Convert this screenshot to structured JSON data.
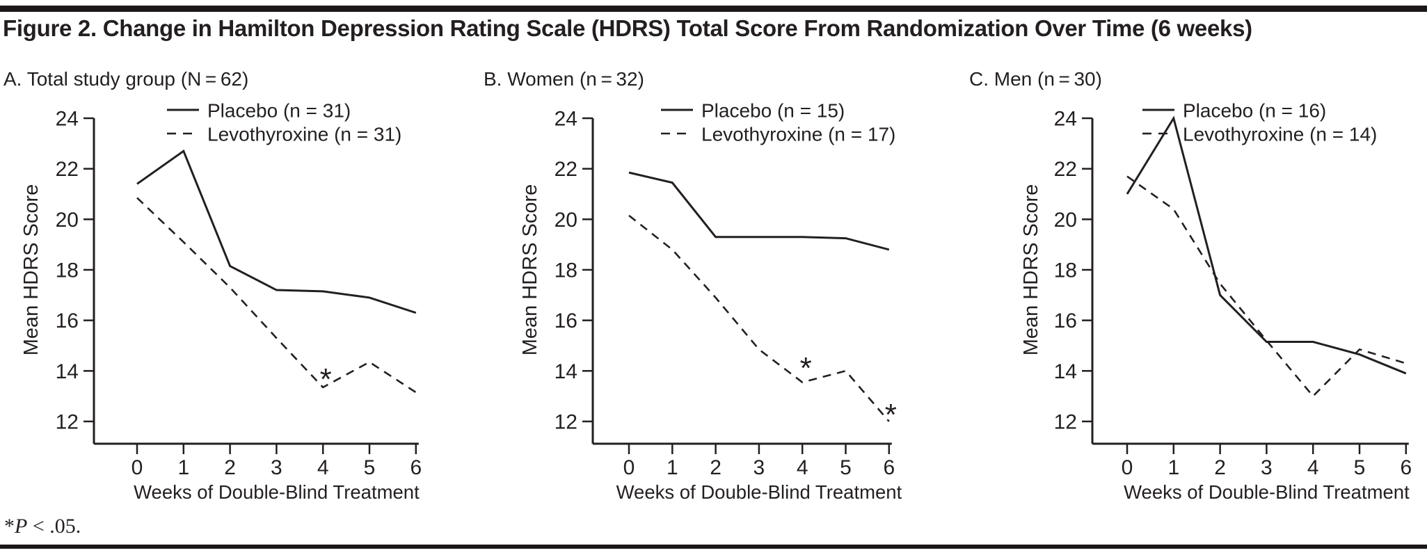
{
  "title": "Figure 2. Change in Hamilton Depression Rating Scale (HDRS) Total Score From Randomization Over Time (6 weeks)",
  "footnote": {
    "marker": "*",
    "p": "P",
    "rest": " < .05."
  },
  "axes": {
    "xlabel": "Weeks of Double-Blind Treatment",
    "ylabel": "Mean HDRS Score",
    "xticks": [
      0,
      1,
      2,
      3,
      4,
      5,
      6
    ],
    "yticks": [
      12,
      14,
      16,
      18,
      20,
      22,
      24
    ],
    "ylim": [
      12,
      24
    ],
    "grid": false,
    "legend_position": "top-right"
  },
  "line_styles": {
    "solid_series": "Placebo",
    "dashed_series": "Levothyroxine",
    "line_color": "#231f20"
  },
  "chart_data": [
    {
      "type": "line",
      "panel": "A",
      "heading": "A. Total study group (N = 62)",
      "x": [
        0,
        1,
        2,
        3,
        4,
        5,
        6
      ],
      "series": [
        {
          "name": "Placebo (n = 31)",
          "style": "solid",
          "values": [
            21.4,
            22.7,
            18.15,
            17.2,
            17.15,
            16.9,
            16.3
          ]
        },
        {
          "name": "Levothyroxine (n = 31)",
          "style": "dashed",
          "values": [
            20.85,
            19.1,
            17.3,
            15.3,
            13.35,
            14.35,
            13.15
          ]
        }
      ],
      "annotations": [
        {
          "text": "*",
          "x": 4.06,
          "y": 13.95
        }
      ]
    },
    {
      "type": "line",
      "panel": "B",
      "heading": "B. Women (n = 32)",
      "x": [
        0,
        1,
        2,
        3,
        4,
        5,
        6
      ],
      "series": [
        {
          "name": "Placebo (n = 15)",
          "style": "solid",
          "values": [
            21.85,
            21.45,
            19.3,
            19.3,
            19.3,
            19.25,
            18.8
          ]
        },
        {
          "name": "Levothyroxine (n = 17)",
          "style": "dashed",
          "values": [
            20.15,
            18.8,
            16.9,
            14.85,
            13.55,
            14.0,
            12.0
          ]
        }
      ],
      "annotations": [
        {
          "text": "*",
          "x": 4.08,
          "y": 14.4
        },
        {
          "text": "*",
          "x": 6.04,
          "y": 12.55
        }
      ]
    },
    {
      "type": "line",
      "panel": "C",
      "heading": "C. Men (n = 30)",
      "x": [
        0,
        1,
        2,
        3,
        4,
        5,
        6
      ],
      "series": [
        {
          "name": "Placebo (n = 16)",
          "style": "solid",
          "values": [
            21.0,
            24.0,
            17.0,
            15.15,
            15.15,
            14.65,
            13.9
          ]
        },
        {
          "name": "Levothyroxine (n = 14)",
          "style": "dashed",
          "values": [
            21.7,
            20.4,
            17.45,
            15.2,
            13.0,
            14.85,
            14.3
          ]
        }
      ],
      "annotations": []
    }
  ]
}
